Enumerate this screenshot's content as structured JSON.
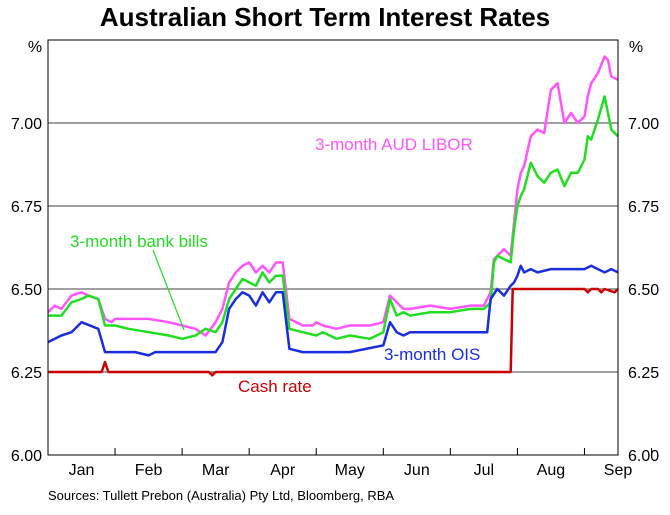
{
  "chart_data": {
    "type": "line",
    "title": "Australian Short Term Interest Rates",
    "unit_left": "%",
    "unit_right": "%",
    "source": "Sources: Tullett Prebon (Australia) Pty Ltd, Bloomberg, RBA",
    "ylim": [
      6.0,
      7.25
    ],
    "yticks": [
      "6.00",
      "6.25",
      "6.50",
      "6.75",
      "7.00"
    ],
    "ytick_values": [
      6.0,
      6.25,
      6.5,
      6.75,
      7.0
    ],
    "xlim": [
      0,
      8.5
    ],
    "months": [
      "Jan",
      "Feb",
      "Mar",
      "Apr",
      "May",
      "Jun",
      "Jul",
      "Aug",
      "Sep"
    ],
    "gridlines": true,
    "series": [
      {
        "name": "3-month AUD LIBOR",
        "color": "#ff55ff",
        "x": [
          0,
          0.1,
          0.2,
          0.35,
          0.5,
          0.6,
          0.75,
          0.85,
          0.95,
          1.0,
          1.2,
          1.5,
          1.8,
          2.0,
          2.2,
          2.35,
          2.5,
          2.6,
          2.7,
          2.8,
          2.9,
          3.0,
          3.1,
          3.2,
          3.3,
          3.4,
          3.45,
          3.5,
          3.6,
          3.8,
          3.95,
          4.0,
          4.1,
          4.3,
          4.5,
          4.8,
          5.0,
          5.1,
          5.2,
          5.3,
          5.4,
          5.7,
          6.0,
          6.3,
          6.5,
          6.6,
          6.65,
          6.7,
          6.8,
          6.9,
          6.95,
          7.0,
          7.05,
          7.1,
          7.2,
          7.3,
          7.4,
          7.5,
          7.6,
          7.7,
          7.8,
          7.9,
          8.0,
          8.05,
          8.1,
          8.2,
          8.3,
          8.35,
          8.4,
          8.5
        ],
        "values": [
          6.43,
          6.45,
          6.44,
          6.48,
          6.49,
          6.48,
          6.47,
          6.41,
          6.4,
          6.41,
          6.41,
          6.41,
          6.4,
          6.39,
          6.38,
          6.36,
          6.4,
          6.44,
          6.52,
          6.55,
          6.57,
          6.58,
          6.55,
          6.57,
          6.55,
          6.58,
          6.58,
          6.58,
          6.41,
          6.39,
          6.39,
          6.4,
          6.39,
          6.38,
          6.39,
          6.39,
          6.4,
          6.48,
          6.46,
          6.44,
          6.44,
          6.45,
          6.44,
          6.45,
          6.45,
          6.49,
          6.59,
          6.6,
          6.62,
          6.6,
          6.7,
          6.8,
          6.85,
          6.87,
          6.96,
          6.98,
          6.97,
          7.1,
          7.12,
          7.0,
          7.03,
          7.0,
          7.02,
          7.08,
          7.12,
          7.15,
          7.2,
          7.19,
          7.14,
          7.13
        ]
      },
      {
        "name": "3-month bank bills",
        "color": "#22dd22",
        "x": [
          0,
          0.2,
          0.35,
          0.5,
          0.6,
          0.75,
          0.85,
          1.0,
          1.2,
          1.5,
          1.8,
          2.0,
          2.2,
          2.35,
          2.5,
          2.6,
          2.7,
          2.8,
          2.9,
          3.0,
          3.1,
          3.2,
          3.3,
          3.4,
          3.5,
          3.6,
          3.8,
          4.0,
          4.1,
          4.3,
          4.5,
          4.8,
          5.0,
          5.1,
          5.2,
          5.3,
          5.4,
          5.7,
          6.0,
          6.3,
          6.5,
          6.6,
          6.65,
          6.7,
          6.8,
          6.9,
          6.95,
          7.0,
          7.05,
          7.1,
          7.2,
          7.3,
          7.4,
          7.5,
          7.6,
          7.7,
          7.8,
          7.9,
          8.0,
          8.05,
          8.1,
          8.2,
          8.3,
          8.4,
          8.5
        ],
        "values": [
          6.42,
          6.42,
          6.46,
          6.47,
          6.48,
          6.47,
          6.39,
          6.39,
          6.38,
          6.37,
          6.36,
          6.35,
          6.36,
          6.38,
          6.37,
          6.4,
          6.47,
          6.5,
          6.53,
          6.52,
          6.51,
          6.55,
          6.52,
          6.54,
          6.54,
          6.38,
          6.37,
          6.36,
          6.37,
          6.35,
          6.36,
          6.35,
          6.37,
          6.47,
          6.42,
          6.43,
          6.42,
          6.43,
          6.43,
          6.44,
          6.44,
          6.46,
          6.58,
          6.6,
          6.59,
          6.58,
          6.68,
          6.75,
          6.78,
          6.8,
          6.88,
          6.84,
          6.82,
          6.85,
          6.86,
          6.81,
          6.85,
          6.85,
          6.89,
          6.96,
          6.95,
          7.01,
          7.08,
          6.98,
          6.96
        ]
      },
      {
        "name": "3-month OIS",
        "color": "#1a2ee0",
        "x": [
          0,
          0.2,
          0.35,
          0.5,
          0.75,
          0.85,
          1.0,
          1.3,
          1.5,
          1.6,
          1.8,
          2.0,
          2.2,
          2.35,
          2.5,
          2.6,
          2.7,
          2.8,
          2.9,
          3.0,
          3.1,
          3.2,
          3.3,
          3.4,
          3.5,
          3.6,
          3.8,
          4.0,
          4.5,
          5.0,
          5.1,
          5.2,
          5.3,
          5.4,
          5.7,
          6.0,
          6.3,
          6.55,
          6.6,
          6.7,
          6.8,
          6.9,
          6.95,
          7.0,
          7.05,
          7.1,
          7.2,
          7.3,
          7.5,
          7.8,
          8.0,
          8.1,
          8.2,
          8.3,
          8.4,
          8.5
        ],
        "values": [
          6.34,
          6.36,
          6.37,
          6.4,
          6.38,
          6.31,
          6.31,
          6.31,
          6.3,
          6.31,
          6.31,
          6.31,
          6.31,
          6.31,
          6.31,
          6.34,
          6.44,
          6.47,
          6.49,
          6.48,
          6.45,
          6.49,
          6.46,
          6.49,
          6.49,
          6.32,
          6.31,
          6.31,
          6.31,
          6.33,
          6.4,
          6.37,
          6.36,
          6.37,
          6.37,
          6.37,
          6.37,
          6.37,
          6.47,
          6.5,
          6.48,
          6.51,
          6.52,
          6.54,
          6.57,
          6.55,
          6.56,
          6.55,
          6.56,
          6.56,
          6.56,
          6.57,
          6.56,
          6.55,
          6.56,
          6.55
        ]
      },
      {
        "name": "Cash rate",
        "color": "#cc0000",
        "x": [
          0,
          0.8,
          0.85,
          0.9,
          2.4,
          2.45,
          2.5,
          6.9,
          6.93,
          8.0,
          8.05,
          8.1,
          8.2,
          8.25,
          8.3,
          8.45,
          8.5
        ],
        "values": [
          6.25,
          6.25,
          6.28,
          6.25,
          6.25,
          6.24,
          6.25,
          6.25,
          6.5,
          6.5,
          6.49,
          6.5,
          6.5,
          6.49,
          6.5,
          6.49,
          6.5
        ]
      }
    ],
    "annotations": [
      {
        "text": "3-month AUD LIBOR",
        "color": "#ff55ff"
      },
      {
        "text": "3-month bank bills",
        "color": "#22dd22"
      },
      {
        "text": "3-month OIS",
        "color": "#1a2ee0"
      },
      {
        "text": "Cash rate",
        "color": "#cc0000"
      }
    ]
  }
}
